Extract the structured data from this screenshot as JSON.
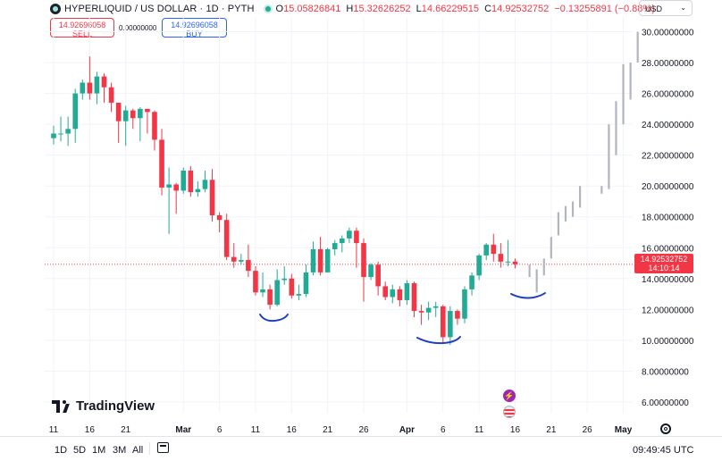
{
  "header": {
    "title": "HYPERLIQUID / US DOLLAR · 1D · PYTH",
    "open_label": "O",
    "open": "15.05826841",
    "high_label": "H",
    "high": "15.32626252",
    "low_label": "L",
    "low": "14.66229515",
    "close_label": "C",
    "close": "14.92532752",
    "change": "−0.13255891 (−0.88%)"
  },
  "trade": {
    "sell_price": "14.92696058",
    "sell_label": "SELL",
    "spread": "0.00000000",
    "buy_price": "14.92696058",
    "buy_label": "BUY"
  },
  "currency": "USD",
  "price_badge": {
    "price": "14.92532752",
    "countdown": "14:10:14"
  },
  "branding": "TradingView",
  "timeframes": [
    "1D",
    "5D",
    "1M",
    "3M",
    "All"
  ],
  "clock": "09:49:45 UTC",
  "colors": {
    "up": "#22ab94",
    "down": "#f23645",
    "projection": "#b2b5be",
    "annotation": "#1f3fbf"
  },
  "chart_data": {
    "type": "candlestick",
    "ylim": [
      5.3,
      30.9
    ],
    "y_ticks": [
      "6.00000000",
      "8.00000000",
      "10.00000000",
      "12.00000000",
      "14.00000000",
      "16.00000000",
      "18.00000000",
      "20.00000000",
      "22.00000000",
      "24.00000000",
      "26.00000000",
      "28.00000000",
      "30.00000000"
    ],
    "y_tick_values": [
      6,
      8,
      10,
      12,
      14,
      16,
      18,
      20,
      22,
      24,
      26,
      28,
      30
    ],
    "x_ticks": [
      {
        "label": "11",
        "day": 0
      },
      {
        "label": "16",
        "day": 5
      },
      {
        "label": "21",
        "day": 10
      },
      {
        "label": "Mar",
        "day": 18
      },
      {
        "label": "6",
        "day": 23
      },
      {
        "label": "11",
        "day": 28
      },
      {
        "label": "16",
        "day": 33
      },
      {
        "label": "21",
        "day": 38
      },
      {
        "label": "26",
        "day": 43
      },
      {
        "label": "Apr",
        "day": 49
      },
      {
        "label": "6",
        "day": 54
      },
      {
        "label": "11",
        "day": 59
      },
      {
        "label": "16",
        "day": 64
      },
      {
        "label": "21",
        "day": 69
      },
      {
        "label": "26",
        "day": 74
      },
      {
        "label": "May",
        "day": 79
      }
    ],
    "current_price": 14.92532752,
    "candles": [
      [
        23.1,
        23.4,
        23.9,
        22.7
      ],
      [
        23.4,
        23.4,
        24.5,
        22.9
      ],
      [
        23.4,
        23.7,
        24.5,
        22.6
      ],
      [
        23.7,
        26.0,
        26.3,
        22.8
      ],
      [
        26.0,
        26.7,
        26.9,
        25.6
      ],
      [
        26.7,
        26.0,
        28.4,
        25.6
      ],
      [
        26.0,
        27.1,
        27.4,
        25.3
      ],
      [
        27.1,
        26.4,
        27.3,
        25.4
      ],
      [
        26.4,
        25.4,
        26.7,
        24.8
      ],
      [
        25.4,
        24.2,
        25.4,
        22.8
      ],
      [
        24.2,
        24.9,
        25.2,
        22.6
      ],
      [
        24.9,
        24.4,
        25.0,
        23.7
      ],
      [
        24.4,
        25.0,
        25.1,
        22.9
      ],
      [
        25.0,
        24.8,
        25.0,
        23.4
      ],
      [
        24.8,
        23.0,
        24.9,
        22.3
      ],
      [
        23.0,
        19.9,
        23.7,
        19.4
      ],
      [
        19.9,
        20.1,
        21.2,
        16.9
      ],
      [
        20.1,
        19.7,
        20.2,
        18.2
      ],
      [
        19.7,
        21.0,
        21.2,
        19.5
      ],
      [
        21.0,
        19.6,
        21.3,
        19.3
      ],
      [
        19.6,
        19.8,
        20.3,
        19.3
      ],
      [
        19.8,
        20.4,
        21.0,
        19.6
      ],
      [
        20.4,
        18.1,
        21.1,
        17.7
      ],
      [
        18.1,
        17.8,
        18.3,
        17.0
      ],
      [
        17.8,
        15.4,
        18.2,
        15.2
      ],
      [
        15.4,
        15.1,
        16.3,
        14.7
      ],
      [
        15.1,
        15.2,
        15.6,
        14.9
      ],
      [
        15.2,
        14.5,
        16.2,
        14.1
      ],
      [
        14.5,
        13.1,
        14.8,
        12.9
      ],
      [
        13.1,
        13.3,
        14.4,
        12.8
      ],
      [
        13.3,
        12.3,
        13.6,
        12.0
      ],
      [
        12.3,
        13.9,
        14.6,
        12.2
      ],
      [
        13.9,
        14.0,
        14.8,
        13.6
      ],
      [
        14.0,
        12.9,
        14.3,
        12.7
      ],
      [
        12.9,
        13.0,
        13.6,
        12.6
      ],
      [
        13.0,
        14.4,
        14.9,
        12.8
      ],
      [
        14.4,
        15.9,
        16.4,
        14.2
      ],
      [
        15.9,
        14.4,
        16.7,
        14.2
      ],
      [
        14.4,
        15.9,
        16.0,
        15.1
      ],
      [
        15.9,
        16.3,
        16.5,
        15.5
      ],
      [
        16.3,
        16.6,
        16.8,
        15.7
      ],
      [
        16.6,
        17.1,
        17.3,
        16.3
      ],
      [
        17.1,
        16.3,
        17.3,
        14.7
      ],
      [
        16.3,
        14.1,
        16.6,
        12.5
      ],
      [
        14.1,
        14.9,
        15.0,
        13.9
      ],
      [
        14.9,
        13.5,
        15.1,
        12.9
      ],
      [
        13.5,
        12.8,
        13.8,
        12.6
      ],
      [
        12.8,
        13.3,
        13.6,
        12.4
      ],
      [
        13.3,
        12.6,
        13.5,
        12.2
      ],
      [
        12.6,
        13.7,
        13.9,
        12.3
      ],
      [
        13.7,
        11.9,
        13.8,
        11.5
      ],
      [
        11.9,
        11.8,
        12.3,
        11.0
      ],
      [
        11.8,
        12.1,
        12.5,
        11.3
      ],
      [
        12.1,
        12.2,
        12.5,
        11.5
      ],
      [
        12.2,
        10.2,
        12.3,
        9.8
      ],
      [
        10.2,
        11.9,
        12.2,
        9.7
      ],
      [
        11.9,
        11.4,
        12.0,
        11.0
      ],
      [
        11.4,
        13.3,
        13.5,
        11.1
      ],
      [
        13.3,
        14.2,
        14.4,
        12.9
      ],
      [
        14.2,
        15.5,
        15.6,
        13.9
      ],
      [
        15.5,
        16.2,
        16.3,
        15.2
      ],
      [
        16.2,
        15.6,
        16.9,
        15.1
      ],
      [
        15.6,
        15.1,
        16.3,
        14.7
      ],
      [
        15.1,
        15.1,
        16.5,
        14.8
      ],
      [
        15.1,
        14.93,
        15.3,
        14.66
      ]
    ],
    "projection": [
      [
        66,
        14.1,
        14.9
      ],
      [
        67,
        13.1,
        14.6
      ],
      [
        68,
        14.2,
        15.3
      ],
      [
        69,
        15.3,
        16.7
      ],
      [
        70,
        16.8,
        18.3
      ],
      [
        71,
        17.7,
        18.7
      ],
      [
        72,
        18.0,
        19.0
      ],
      [
        73,
        18.6,
        20.0
      ],
      [
        76,
        19.5,
        20.0
      ],
      [
        77,
        19.8,
        24.0
      ],
      [
        78,
        22.0,
        25.5
      ],
      [
        79,
        24.0,
        27.9
      ],
      [
        80,
        25.6,
        28.0
      ],
      [
        81,
        28.0,
        30.0
      ]
    ]
  }
}
